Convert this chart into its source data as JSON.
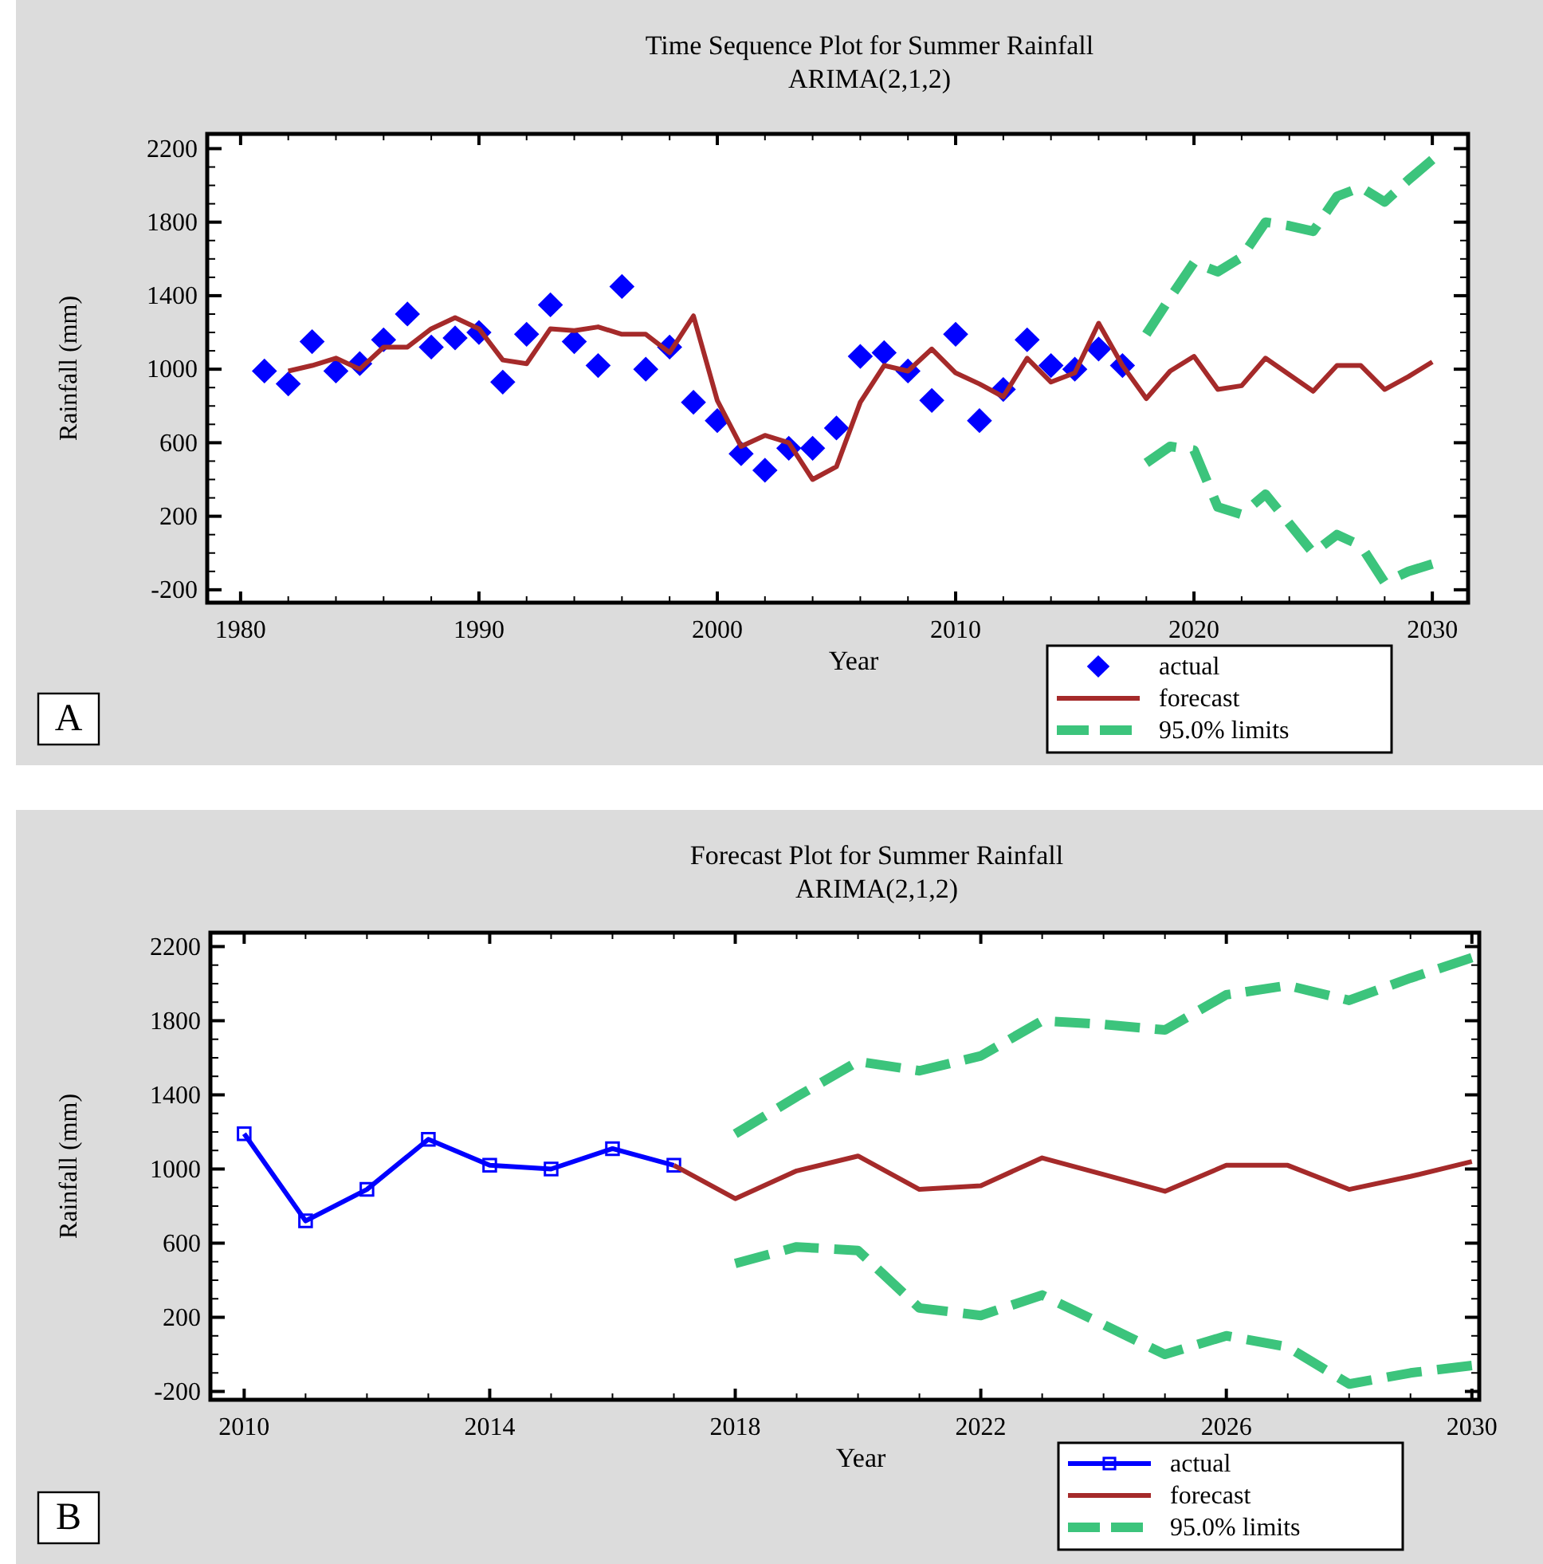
{
  "chart_data": [
    {
      "type": "line",
      "title": "Time Sequence Plot for Summer Rainfall",
      "subtitle": "ARIMA(2,1,2)",
      "xlabel": "Year",
      "ylabel": "Rainfall (mm)",
      "annotations": [
        "A"
      ],
      "legend": "bottom right",
      "grid": false,
      "xlim": [
        1978.6,
        2031.5
      ],
      "xticks": [
        1980,
        {
          "value": 1982,
          "label": null
        },
        {
          "value": 1984,
          "label": null
        },
        {
          "value": 1986,
          "label": null
        },
        {
          "value": 1988,
          "label": null
        },
        1990,
        {
          "value": 1992,
          "label": null
        },
        {
          "value": 1994,
          "label": null
        },
        {
          "value": 1996,
          "label": null
        },
        {
          "value": 1998,
          "label": null
        },
        2000,
        {
          "value": 2002,
          "label": null
        },
        {
          "value": 2004,
          "label": null
        },
        {
          "value": 2006,
          "label": null
        },
        {
          "value": 2008,
          "label": null
        },
        2010,
        {
          "value": 2012,
          "label": null
        },
        {
          "value": 2014,
          "label": null
        },
        {
          "value": 2016,
          "label": null
        },
        {
          "value": 2018,
          "label": null
        },
        2020,
        {
          "value": 2022,
          "label": null
        },
        {
          "value": 2024,
          "label": null
        },
        {
          "value": 2026,
          "label": null
        },
        {
          "value": 2028,
          "label": null
        },
        2030
      ],
      "ylim": [
        -270,
        2280
      ],
      "yticks": [
        -200,
        {
          "value": -100,
          "label": null
        },
        {
          "value": 0,
          "label": null
        },
        {
          "value": 100,
          "label": null
        },
        200,
        {
          "value": 300,
          "label": null
        },
        {
          "value": 400,
          "label": null
        },
        {
          "value": 500,
          "label": null
        },
        600,
        {
          "value": 700,
          "label": null
        },
        {
          "value": 800,
          "label": null
        },
        {
          "value": 900,
          "label": null
        },
        1000,
        {
          "value": 1100,
          "label": null
        },
        {
          "value": 1200,
          "label": null
        },
        {
          "value": 1300,
          "label": null
        },
        1400,
        {
          "value": 1500,
          "label": null
        },
        {
          "value": 1600,
          "label": null
        },
        {
          "value": 1700,
          "label": null
        },
        1800,
        {
          "value": 1900,
          "label": null
        },
        {
          "value": 2000,
          "label": null
        },
        {
          "value": 2100,
          "label": null
        },
        2200
      ],
      "series": [
        {
          "name": "actual",
          "type": "scatter",
          "marker": "diamond",
          "color": "#0000ff",
          "x": [
            1981,
            1982,
            1983,
            1984,
            1985,
            1986,
            1987,
            1988,
            1989,
            1990,
            1991,
            1992,
            1993,
            1994,
            1995,
            1996,
            1997,
            1998,
            1999,
            2000,
            2001,
            2002,
            2003,
            2004,
            2005,
            2006,
            2007,
            2008,
            2009,
            2010,
            2011,
            2012,
            2013,
            2014,
            2015,
            2016,
            2017
          ],
          "values": [
            990,
            920,
            1150,
            990,
            1030,
            1160,
            1300,
            1120,
            1170,
            1200,
            930,
            1190,
            1350,
            1150,
            1020,
            1450,
            1000,
            1120,
            820,
            720,
            540,
            450,
            570,
            570,
            680,
            1070,
            1090,
            990,
            830,
            1190,
            720,
            890,
            1160,
            1020,
            1000,
            1110,
            1020
          ]
        },
        {
          "name": "forecast",
          "type": "line",
          "marker": "none",
          "line_style": "solid",
          "color": "#a52a2a",
          "x": [
            1982,
            1983,
            1984,
            1985,
            1986,
            1987,
            1988,
            1989,
            1990,
            1991,
            1992,
            1993,
            1994,
            1995,
            1996,
            1997,
            1998,
            1999,
            2000,
            2001,
            2002,
            2003,
            2004,
            2005,
            2006,
            2007,
            2008,
            2009,
            2010,
            2011,
            2012,
            2013,
            2014,
            2015,
            2016,
            2017,
            2018,
            2019,
            2020,
            2021,
            2022,
            2023,
            2024,
            2025,
            2026,
            2027,
            2028,
            2029,
            2030
          ],
          "values": [
            990,
            1020,
            1060,
            1000,
            1120,
            1120,
            1220,
            1280,
            1220,
            1050,
            1030,
            1220,
            1210,
            1230,
            1190,
            1190,
            1090,
            1290,
            830,
            580,
            640,
            600,
            400,
            470,
            820,
            1020,
            990,
            1110,
            980,
            920,
            850,
            1060,
            930,
            980,
            1250,
            1020,
            840,
            990,
            1070,
            890,
            910,
            1060,
            970,
            880,
            1020,
            1020,
            890,
            960,
            1040
          ]
        },
        {
          "name": "95.0% limits",
          "type": "line",
          "marker": "none",
          "line_style": "dashed",
          "color": "#3cc47c",
          "x": [
            2018,
            2019,
            2020,
            2021,
            2022,
            2023,
            2024,
            2025,
            2026,
            2027,
            2028,
            2029,
            2030
          ],
          "values": [
            1190,
            1390,
            1580,
            1530,
            1610,
            1800,
            1780,
            1750,
            1940,
            1990,
            1910,
            2030,
            2140
          ]
        },
        {
          "type": "line",
          "marker": "none",
          "line_style": "dashed",
          "color": "#3cc47c",
          "x": [
            2018,
            2019,
            2020,
            2021,
            2022,
            2023,
            2024,
            2025,
            2026,
            2027,
            2028,
            2029,
            2030
          ],
          "values": [
            490,
            580,
            560,
            250,
            210,
            320,
            160,
            0,
            100,
            40,
            -160,
            -100,
            -60
          ]
        }
      ]
    },
    {
      "type": "line",
      "title": "Forecast Plot for Summer Rainfall",
      "subtitle": "ARIMA(2,1,2)",
      "xlabel": "Year",
      "ylabel": "Rainfall (mm)",
      "annotations": [
        "B"
      ],
      "legend": "bottom right",
      "grid": false,
      "xlim": [
        2009.45,
        2030.12
      ],
      "xticks": [
        2010,
        {
          "value": 2011,
          "label": null
        },
        {
          "value": 2012,
          "label": null
        },
        {
          "value": 2013,
          "label": null
        },
        2014,
        {
          "value": 2015,
          "label": null
        },
        {
          "value": 2016,
          "label": null
        },
        {
          "value": 2017,
          "label": null
        },
        2018,
        {
          "value": 2019,
          "label": null
        },
        {
          "value": 2020,
          "label": null
        },
        {
          "value": 2021,
          "label": null
        },
        2022,
        {
          "value": 2023,
          "label": null
        },
        {
          "value": 2024,
          "label": null
        },
        {
          "value": 2025,
          "label": null
        },
        2026,
        {
          "value": 2027,
          "label": null
        },
        {
          "value": 2028,
          "label": null
        },
        {
          "value": 2029,
          "label": null
        },
        2030
      ],
      "ylim": [
        -245,
        2275
      ],
      "yticks": [
        -200,
        {
          "value": -100,
          "label": null
        },
        {
          "value": 0,
          "label": null
        },
        {
          "value": 100,
          "label": null
        },
        200,
        {
          "value": 300,
          "label": null
        },
        {
          "value": 400,
          "label": null
        },
        {
          "value": 500,
          "label": null
        },
        600,
        {
          "value": 700,
          "label": null
        },
        {
          "value": 800,
          "label": null
        },
        {
          "value": 900,
          "label": null
        },
        1000,
        {
          "value": 1100,
          "label": null
        },
        {
          "value": 1200,
          "label": null
        },
        {
          "value": 1300,
          "label": null
        },
        1400,
        {
          "value": 1500,
          "label": null
        },
        {
          "value": 1600,
          "label": null
        },
        {
          "value": 1700,
          "label": null
        },
        1800,
        {
          "value": 1900,
          "label": null
        },
        {
          "value": 2000,
          "label": null
        },
        {
          "value": 2100,
          "label": null
        },
        2200
      ],
      "series": [
        {
          "name": "actual",
          "type": "line",
          "marker": "square",
          "line_style": "solid",
          "color": "#0000ff",
          "x": [
            2010,
            2011,
            2012,
            2013,
            2014,
            2015,
            2016,
            2017
          ],
          "values": [
            1190,
            720,
            890,
            1160,
            1020,
            1000,
            1110,
            1020
          ]
        },
        {
          "name": "forecast",
          "type": "line",
          "marker": "none",
          "line_style": "solid",
          "color": "#a52a2a",
          "x": [
            2017,
            2018,
            2019,
            2020,
            2021,
            2022,
            2023,
            2024,
            2025,
            2026,
            2027,
            2028,
            2029,
            2030
          ],
          "values": [
            1020,
            840,
            990,
            1070,
            890,
            910,
            1060,
            970,
            880,
            1020,
            1020,
            890,
            960,
            1040
          ]
        },
        {
          "name": "95.0% limits",
          "type": "line",
          "marker": "none",
          "line_style": "dashed",
          "color": "#3cc47c",
          "x": [
            2018,
            2019,
            2020,
            2021,
            2022,
            2023,
            2024,
            2025,
            2026,
            2027,
            2028,
            2029,
            2030
          ],
          "values": [
            1190,
            1390,
            1580,
            1530,
            1610,
            1800,
            1780,
            1750,
            1940,
            1990,
            1910,
            2030,
            2140
          ]
        },
        {
          "type": "line",
          "marker": "none",
          "line_style": "dashed",
          "color": "#3cc47c",
          "x": [
            2018,
            2019,
            2020,
            2021,
            2022,
            2023,
            2024,
            2025,
            2026,
            2027,
            2028,
            2029,
            2030
          ],
          "values": [
            490,
            580,
            560,
            250,
            210,
            320,
            160,
            0,
            100,
            40,
            -160,
            -100,
            -60
          ]
        }
      ]
    }
  ]
}
